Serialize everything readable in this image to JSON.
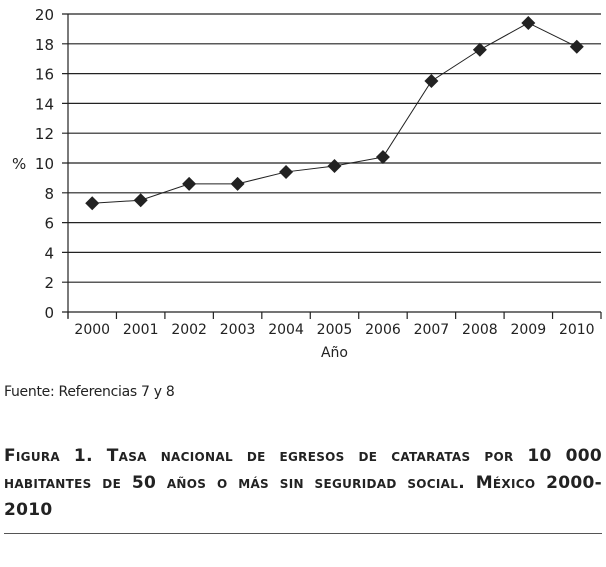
{
  "chart_data": {
    "type": "line",
    "title": "",
    "xlabel": "Año",
    "ylabel": "%",
    "ylim": [
      0,
      20
    ],
    "yticks": [
      "0",
      "2",
      "4",
      "6",
      "8",
      "10",
      "12",
      "14",
      "16",
      "18",
      "20"
    ],
    "categories": [
      "2000",
      "2001",
      "2002",
      "2003",
      "2004",
      "2005",
      "2006",
      "2007",
      "2008",
      "2009",
      "2010"
    ],
    "series": [
      {
        "name": "Tasa",
        "values": [
          7.3,
          7.5,
          8.6,
          8.6,
          9.4,
          9.8,
          10.4,
          15.5,
          17.6,
          19.4,
          17.8
        ],
        "marker": "diamond",
        "color": "#222222"
      }
    ],
    "grid": true
  },
  "source": "Fuente: Referencias 7 y 8",
  "caption": "Figura 1. Tasa nacional de egresos de cataratas por 10 000 habitantes de 50 años o más sin seguridad social. México 2000-2010"
}
